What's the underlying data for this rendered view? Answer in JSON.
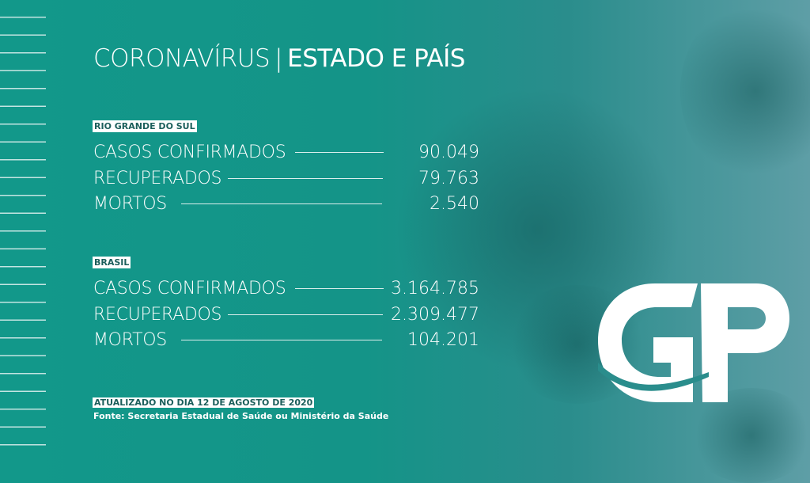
{
  "title": {
    "part1": "CORONAVÍRUS",
    "separator": "|",
    "part2": "ESTADO E PAÍS"
  },
  "sections": [
    {
      "label": "RIO GRANDE DO SUL",
      "rows": [
        {
          "name": "CASOS CONFIRMADOS",
          "value": "90.049"
        },
        {
          "name": "RECUPERADOS",
          "value": "79.763"
        },
        {
          "name": "MORTOS",
          "value": "2.540"
        }
      ]
    },
    {
      "label": "BRASIL",
      "rows": [
        {
          "name": "CASOS CONFIRMADOS",
          "value": "3.164.785"
        },
        {
          "name": "RECUPERADOS",
          "value": "2.309.477"
        },
        {
          "name": "MORTOS",
          "value": "104.201"
        }
      ]
    }
  ],
  "footer": {
    "updated": "ATUALIZADO NO DIA 12 DE AGOSTO DE 2020",
    "source": "Fonte: Secretaria Estadual de Saúde ou Ministério da Saúde"
  },
  "logo": {
    "text": "GP",
    "color": "#ffffff"
  },
  "colors": {
    "background": "#12988a",
    "label_text": "#1c5f5c"
  }
}
